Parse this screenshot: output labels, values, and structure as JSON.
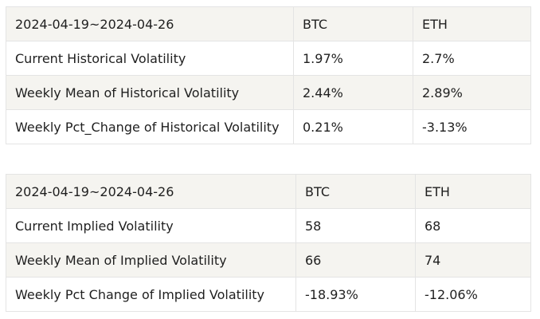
{
  "historical_volatility": {
    "header": [
      "2024-04-19~2024-04-26",
      "BTC",
      "ETH"
    ],
    "rows": [
      [
        "Current Historical Volatility",
        "1.97%",
        "2.7%"
      ],
      [
        "Weekly Mean of Historical Volatility",
        "2.44%",
        "2.89%"
      ],
      [
        "Weekly Pct_Change of Historical Volatility",
        "0.21%",
        "-3.13%"
      ]
    ]
  },
  "implied_volatility": {
    "header": [
      "2024-04-19~2024-04-26",
      "BTC",
      "ETH"
    ],
    "rows": [
      [
        "Current Implied Volatility",
        "58",
        "68"
      ],
      [
        "Weekly Mean of Implied Volatility",
        "66",
        "74"
      ],
      [
        "Weekly Pct Change of Implied Volatility",
        "-18.93%",
        "-12.06%"
      ]
    ]
  },
  "colors": {
    "header_background": "#f5f4f0",
    "striped_row_background": "#f5f4f0",
    "row_background": "#ffffff",
    "border": "#e4e4e4",
    "text": "#1f1f1f"
  }
}
